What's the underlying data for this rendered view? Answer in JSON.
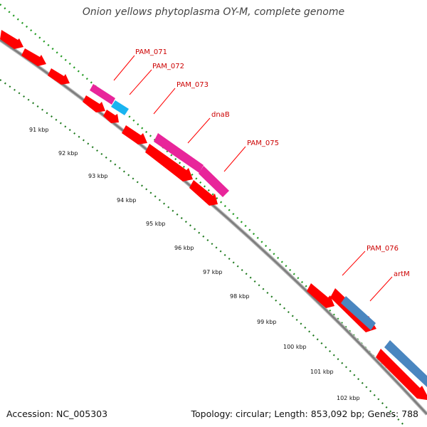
{
  "title": "Onion yellows phytoplasma OY-M, complete genome",
  "footer": {
    "accession": "Accession: NC_005303",
    "summary": "Topology: circular; Length: 853,092 bp; Genes: 788"
  },
  "colors": {
    "cds": "#ff0000",
    "pink": "#e8259a",
    "cyan": "#19b4f0",
    "steel": "#4a86c0",
    "backbone": "#8c8c8c",
    "outer_ticks": "#239b23",
    "inner_ticks": "#1f7a1f",
    "label_text": "#cc0000",
    "leader_line": "#ff0000"
  },
  "scale_labels": [
    "91 kbp",
    "92 kbp",
    "93 kbp",
    "94 kbp",
    "95 kbp",
    "96 kbp",
    "97 kbp",
    "98 kbp",
    "99 kbp",
    "100 kbp",
    "101 kbp",
    "102 kbp"
  ],
  "gene_labels": [
    "PAM_071",
    "PAM_072",
    "PAM_073",
    "dnaB",
    "PAM_075",
    "PAM_076",
    "artM"
  ]
}
